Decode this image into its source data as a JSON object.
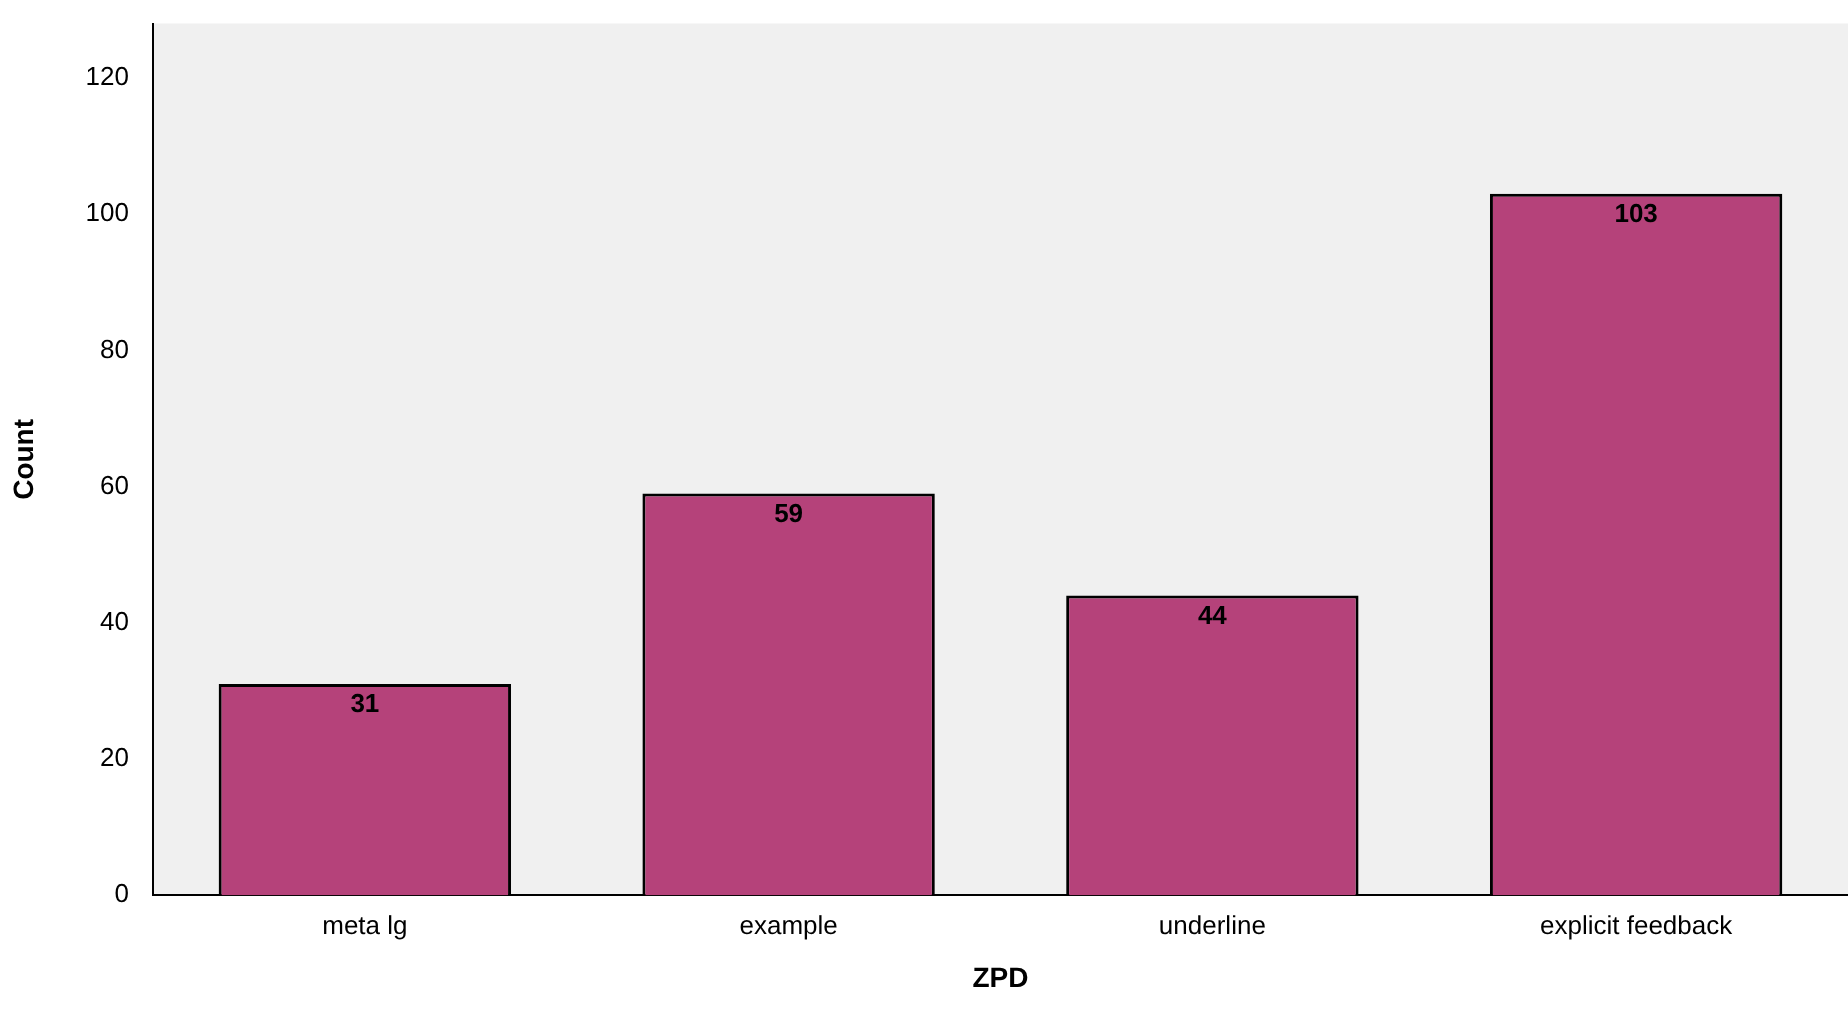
{
  "chart_data": {
    "type": "bar",
    "xlabel": "ZPD",
    "ylabel": "Count",
    "categories": [
      "meta lg",
      "example",
      "underline",
      "explicit feedback"
    ],
    "values": [
      31,
      59,
      44,
      103
    ],
    "color": "#b5427a",
    "ylim": [
      0,
      128
    ],
    "yticks": [
      0,
      20,
      40,
      60,
      80,
      100,
      120
    ],
    "grid": false,
    "legend": false,
    "data_labels": true
  }
}
